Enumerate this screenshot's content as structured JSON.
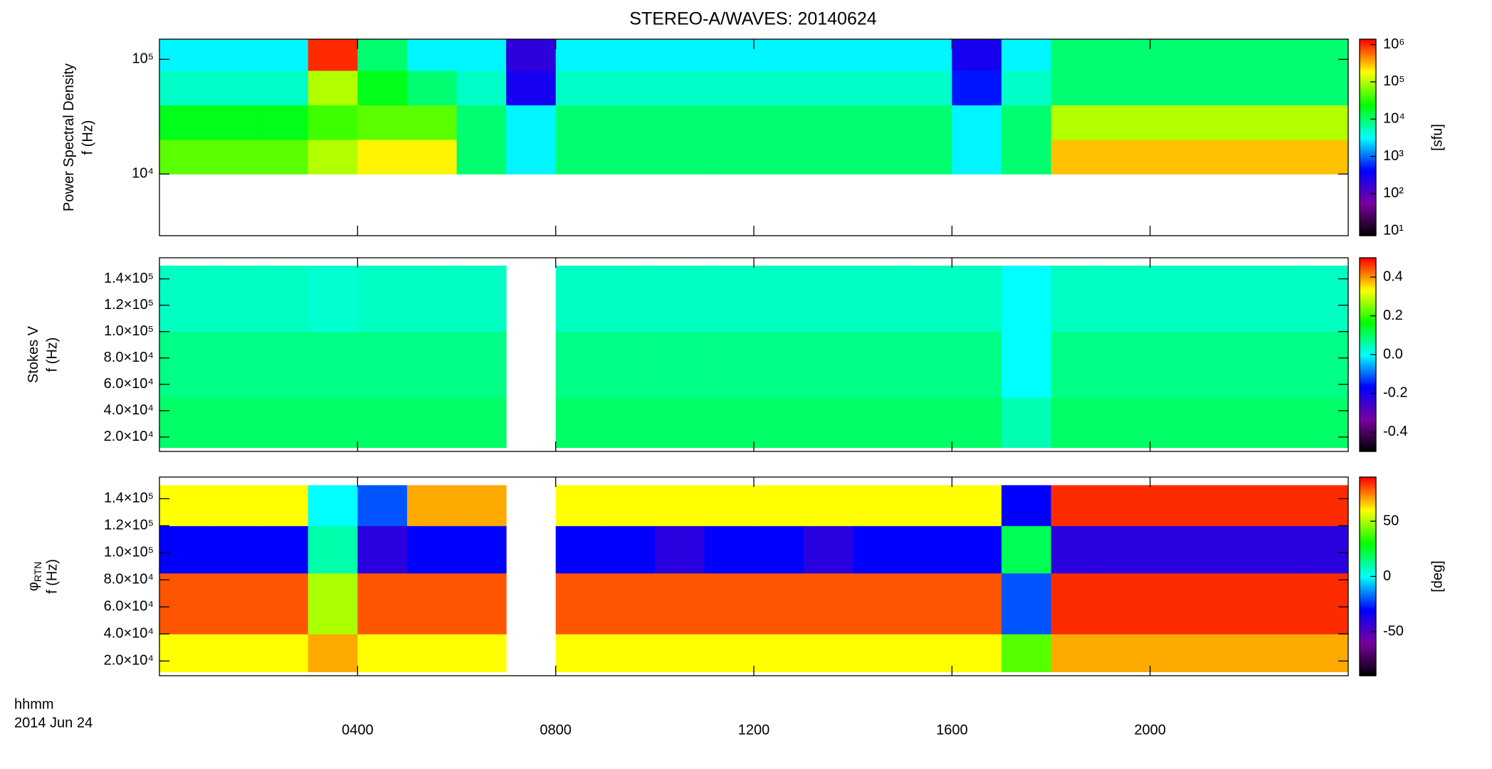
{
  "title": "STEREO-A/WAVES: 20140624",
  "x_axis": {
    "label": "hhmm",
    "sublabel": "2014 Jun 24",
    "xlim": [
      0,
      24
    ],
    "xticks": [
      {
        "value": 4,
        "label": "0400"
      },
      {
        "value": 8,
        "label": "0800"
      },
      {
        "value": 12,
        "label": "1200"
      },
      {
        "value": 16,
        "label": "1600"
      },
      {
        "value": 20,
        "label": "2000"
      }
    ]
  },
  "colormap": [
    "#000000",
    "#7a00a0",
    "#0000ff",
    "#00ffff",
    "#00ff00",
    "#ffff00",
    "#ff0000"
  ],
  "chart_data": [
    {
      "type": "heatmap",
      "y_label": "Power Spectral Density",
      "y_label_f": "f (Hz)",
      "yscale": "log",
      "ylim": [
        2900,
        150000
      ],
      "yticks": [
        {
          "value": 10000,
          "label": "10⁴"
        },
        {
          "value": 100000,
          "label": "10⁵"
        }
      ],
      "x_edges": [
        0,
        1,
        2,
        3,
        4,
        5,
        6,
        7,
        8,
        9,
        10,
        11,
        12,
        13,
        14,
        15,
        16,
        17,
        18,
        19,
        20,
        21,
        22,
        23,
        24
      ],
      "y_edges": [
        10000,
        20000,
        40000,
        80000,
        150000
      ],
      "values": [
        [
          50000,
          50000,
          50000,
          100000,
          200000,
          200000,
          10000,
          3000,
          10000,
          10000,
          10000,
          10000,
          10000,
          10000,
          10000,
          10000,
          3000,
          10000,
          300000,
          300000,
          300000,
          300000,
          300000,
          300000
        ],
        [
          20000,
          20000,
          20000,
          40000,
          50000,
          50000,
          10000,
          3000,
          10000,
          10000,
          10000,
          10000,
          10000,
          10000,
          10000,
          10000,
          3000,
          10000,
          100000,
          100000,
          100000,
          100000,
          100000,
          100000
        ],
        [
          5000,
          5000,
          5000,
          100000,
          20000,
          10000,
          5000,
          300,
          5000,
          5000,
          5000,
          5000,
          5000,
          5000,
          5000,
          5000,
          500,
          5000,
          10000,
          10000,
          10000,
          10000,
          10000,
          10000
        ],
        [
          3000,
          3000,
          3000,
          1000000,
          10000,
          3000,
          3000,
          200,
          3000,
          3000,
          3000,
          3000,
          3000,
          3000,
          3000,
          3000,
          300,
          3000,
          10000,
          10000,
          10000,
          10000,
          10000,
          10000
        ]
      ],
      "cscale": "log",
      "clim": [
        7.4,
        1400000
      ],
      "cticks": [
        {
          "value": 10,
          "label": "10¹"
        },
        {
          "value": 100,
          "label": "10²"
        },
        {
          "value": 1000,
          "label": "10³"
        },
        {
          "value": 10000,
          "label": "10⁴"
        },
        {
          "value": 100000,
          "label": "10⁵"
        },
        {
          "value": 1000000,
          "label": "10⁶"
        }
      ],
      "clabel": "[sfu]"
    },
    {
      "type": "heatmap",
      "y_label": "Stokes V",
      "y_label_f": "f (Hz)",
      "yscale": "linear",
      "ylim": [
        9100,
        156000
      ],
      "yticks": [
        {
          "value": 20000,
          "label": "2.0×10⁴"
        },
        {
          "value": 40000,
          "label": "4.0×10⁴"
        },
        {
          "value": 60000,
          "label": "6.0×10⁴"
        },
        {
          "value": 80000,
          "label": "8.0×10⁴"
        },
        {
          "value": 100000,
          "label": "1.0×10⁵"
        },
        {
          "value": 120000,
          "label": "1.2×10⁵"
        },
        {
          "value": 140000,
          "label": "1.4×10⁵"
        }
      ],
      "x_edges": [
        0,
        1,
        2,
        3,
        4,
        5,
        6,
        7,
        8,
        9,
        10,
        11,
        12,
        13,
        14,
        15,
        16,
        17,
        18,
        19,
        20,
        21,
        22,
        23,
        24
      ],
      "y_edges": [
        12000,
        50000,
        100000,
        150000
      ],
      "values": [
        [
          0.1,
          0.1,
          0.1,
          0.1,
          0.1,
          0.1,
          0.1,
          null,
          0.1,
          0.1,
          0.1,
          0.1,
          0.1,
          0.1,
          0.1,
          0.1,
          0.1,
          0.05,
          0.1,
          0.1,
          0.1,
          0.1,
          0.1,
          0.1
        ],
        [
          0.08,
          0.08,
          0.08,
          0.08,
          0.08,
          0.08,
          0.08,
          null,
          0.08,
          0.08,
          0.08,
          0.08,
          0.08,
          0.08,
          0.08,
          0.08,
          0.08,
          0.0,
          0.08,
          0.08,
          0.08,
          0.08,
          0.08,
          0.08
        ],
        [
          0.04,
          0.04,
          0.04,
          0.03,
          0.04,
          0.04,
          0.04,
          null,
          0.04,
          0.04,
          0.04,
          0.04,
          0.04,
          0.04,
          0.04,
          0.04,
          0.04,
          0.0,
          0.04,
          0.04,
          0.04,
          0.04,
          0.04,
          0.04
        ]
      ],
      "cscale": "linear",
      "clim": [
        -0.5,
        0.5
      ],
      "cticks": [
        {
          "value": 0.4,
          "label": "0.4"
        },
        {
          "value": 0.2,
          "label": "0.2"
        },
        {
          "value": 0,
          "label": "0.0"
        },
        {
          "value": -0.2,
          "label": "-0.2"
        },
        {
          "value": -0.4,
          "label": "-0.4"
        }
      ]
    },
    {
      "type": "heatmap",
      "y_label": "φ",
      "y_label_sub": "RTN",
      "y_label_f": "f (Hz)",
      "yscale": "linear",
      "ylim": [
        9100,
        156000
      ],
      "yticks": [
        {
          "value": 20000,
          "label": "2.0×10⁴"
        },
        {
          "value": 40000,
          "label": "4.0×10⁴"
        },
        {
          "value": 60000,
          "label": "6.0×10⁴"
        },
        {
          "value": 80000,
          "label": "8.0×10⁴"
        },
        {
          "value": 100000,
          "label": "1.0×10⁵"
        },
        {
          "value": 120000,
          "label": "1.2×10⁵"
        },
        {
          "value": 140000,
          "label": "1.4×10⁵"
        }
      ],
      "x_edges": [
        0,
        1,
        2,
        3,
        4,
        5,
        6,
        7,
        8,
        9,
        10,
        11,
        12,
        13,
        14,
        15,
        16,
        17,
        18,
        19,
        20,
        21,
        22,
        23,
        24
      ],
      "y_edges": [
        12000,
        40000,
        85000,
        120000,
        150000
      ],
      "values": [
        [
          60,
          60,
          60,
          70,
          60,
          60,
          60,
          null,
          60,
          60,
          60,
          60,
          60,
          60,
          60,
          60,
          60,
          40,
          70,
          70,
          70,
          70,
          70,
          70
        ],
        [
          80,
          80,
          80,
          50,
          80,
          80,
          80,
          null,
          80,
          80,
          80,
          80,
          80,
          80,
          80,
          80,
          80,
          -20,
          85,
          85,
          85,
          85,
          85,
          85
        ],
        [
          -30,
          -30,
          -30,
          10,
          -40,
          -30,
          -30,
          null,
          -30,
          -30,
          -40,
          -30,
          -30,
          -40,
          -30,
          -30,
          -30,
          20,
          -40,
          -40,
          -40,
          -40,
          -40,
          -40
        ],
        [
          60,
          60,
          60,
          0,
          -20,
          70,
          70,
          null,
          60,
          60,
          60,
          60,
          60,
          60,
          60,
          60,
          60,
          -30,
          85,
          85,
          85,
          85,
          85,
          85
        ]
      ],
      "cscale": "linear",
      "clim": [
        -90,
        90
      ],
      "cticks": [
        {
          "value": 50,
          "label": "50"
        },
        {
          "value": 0,
          "label": "0"
        },
        {
          "value": -50,
          "label": "-50"
        }
      ],
      "clabel": "[deg]"
    }
  ]
}
